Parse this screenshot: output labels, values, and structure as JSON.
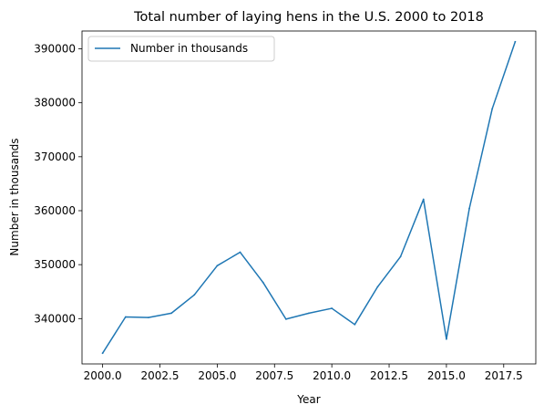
{
  "chart_data": {
    "type": "line",
    "title": "Total number of laying hens in the U.S. 2000 to 2018",
    "xlabel": "Year",
    "ylabel": "Number in thousands",
    "xlim": [
      1999.1,
      2018.9
    ],
    "ylim": [
      331600,
      393300
    ],
    "xticks": [
      2000.0,
      2002.5,
      2005.0,
      2007.5,
      2010.0,
      2012.5,
      2015.0,
      2017.5
    ],
    "xtick_labels": [
      "2000.0",
      "2002.5",
      "2005.0",
      "2007.5",
      "2010.0",
      "2012.5",
      "2015.0",
      "2017.5"
    ],
    "yticks": [
      340000,
      350000,
      360000,
      370000,
      380000,
      390000
    ],
    "ytick_labels": [
      "340000",
      "350000",
      "360000",
      "370000",
      "380000",
      "390000"
    ],
    "grid": false,
    "legend_position": "upper-left",
    "series": [
      {
        "name": "Number in thousands",
        "color": "#1f77b4",
        "x": [
          2000,
          2001,
          2002,
          2003,
          2004,
          2005,
          2006,
          2007,
          2008,
          2009,
          2010,
          2011,
          2012,
          2013,
          2014,
          2015,
          2016,
          2017,
          2018
        ],
        "y": [
          333600,
          340300,
          340200,
          341000,
          344400,
          349800,
          352300,
          346700,
          339900,
          341000,
          341900,
          338900,
          345900,
          351500,
          362100,
          336200,
          360400,
          378900,
          391300
        ]
      }
    ]
  }
}
